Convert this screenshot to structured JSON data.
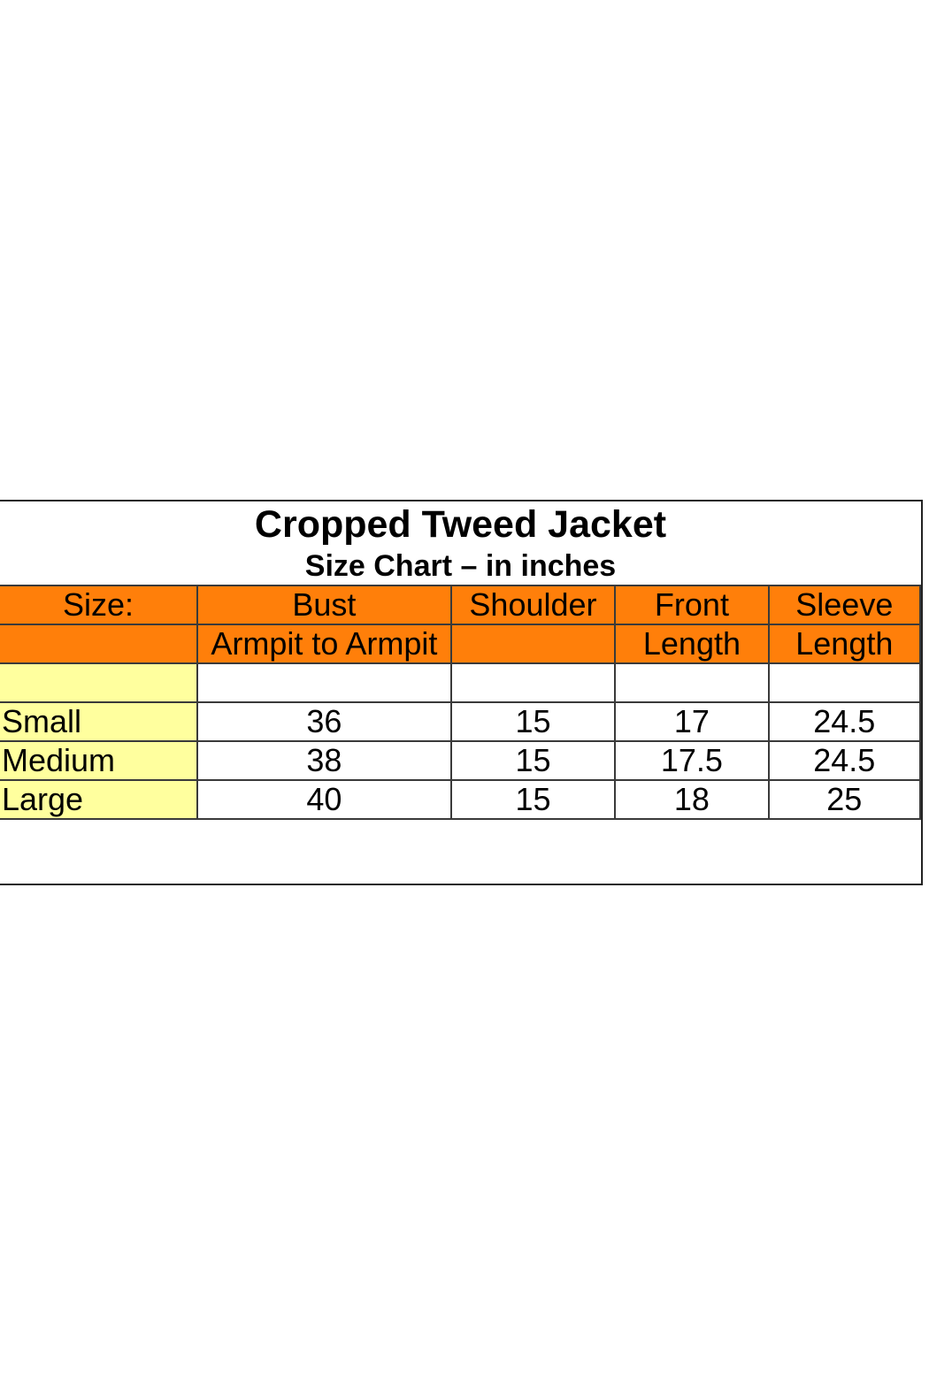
{
  "title": "Cropped Tweed Jacket",
  "subtitle": "Size Chart – in inches",
  "colors": {
    "header_orange": "#ff7f0a",
    "size_yellow": "#ffff9e"
  },
  "header_row1": [
    "Size:",
    "Bust",
    "Shoulder",
    "Front",
    "Sleeve"
  ],
  "header_row2": [
    "",
    "Armpit to Armpit",
    "",
    "Length",
    "Length"
  ],
  "rows": [
    {
      "size": "Small",
      "bust": "36",
      "shoulder": "15",
      "front_length": "17",
      "sleeve_length": "24.5"
    },
    {
      "size": "Medium",
      "bust": "38",
      "shoulder": "15",
      "front_length": "17.5",
      "sleeve_length": "24.5"
    },
    {
      "size": "Large",
      "bust": "40",
      "shoulder": "15",
      "front_length": "18",
      "sleeve_length": "25"
    }
  ],
  "chart_data": {
    "type": "table",
    "title": "Cropped Tweed Jacket",
    "subtitle": "Size Chart – in inches",
    "columns": [
      "Size:",
      "Bust Armpit to Armpit",
      "Shoulder",
      "Front Length",
      "Sleeve Length"
    ],
    "rows": [
      [
        "Small",
        36,
        15,
        17,
        24.5
      ],
      [
        "Medium",
        38,
        15,
        17.5,
        24.5
      ],
      [
        "Large",
        40,
        15,
        18,
        25
      ]
    ]
  }
}
